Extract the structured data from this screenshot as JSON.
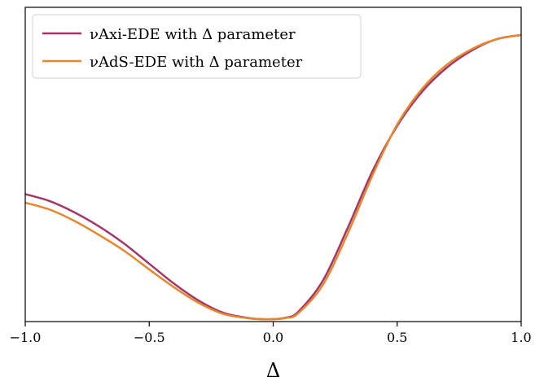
{
  "chart_data": {
    "type": "line",
    "title": "",
    "xlabel": "Δ",
    "ylabel": "",
    "xlim": [
      -1.0,
      1.0
    ],
    "ylim": [
      0,
      1
    ],
    "grid": false,
    "legend_position": "top-left",
    "x_ticks": [
      "−1.0",
      "−0.5",
      "0.0",
      "0.5",
      "1.0"
    ],
    "x_tick_values": [
      -1.0,
      -0.5,
      0.0,
      0.5,
      1.0
    ],
    "series": [
      {
        "name": "νAxi-EDE with Δ parameter",
        "color": "#a2376b",
        "x": [
          -1.0,
          -0.9,
          -0.8,
          -0.7,
          -0.6,
          -0.5,
          -0.4,
          -0.3,
          -0.2,
          -0.1,
          -0.05,
          0.0,
          0.05,
          0.1,
          0.2,
          0.3,
          0.4,
          0.5,
          0.6,
          0.7,
          0.8,
          0.9,
          1.0
        ],
        "y": [
          0.44,
          0.415,
          0.375,
          0.325,
          0.265,
          0.195,
          0.125,
          0.065,
          0.022,
          0.004,
          0.0,
          0.0,
          0.005,
          0.025,
          0.135,
          0.32,
          0.52,
          0.68,
          0.8,
          0.885,
          0.945,
          0.985,
          1.0
        ]
      },
      {
        "name": "νAdS-EDE with Δ parameter",
        "color": "#e8862e",
        "x": [
          -1.0,
          -0.9,
          -0.8,
          -0.7,
          -0.6,
          -0.5,
          -0.4,
          -0.3,
          -0.2,
          -0.1,
          -0.05,
          0.0,
          0.05,
          0.1,
          0.2,
          0.3,
          0.4,
          0.5,
          0.6,
          0.7,
          0.8,
          0.9,
          1.0
        ],
        "y": [
          0.41,
          0.385,
          0.345,
          0.295,
          0.24,
          0.175,
          0.112,
          0.057,
          0.018,
          0.003,
          0.0,
          0.0,
          0.004,
          0.02,
          0.12,
          0.3,
          0.505,
          0.685,
          0.81,
          0.895,
          0.95,
          0.985,
          1.0
        ]
      }
    ]
  }
}
